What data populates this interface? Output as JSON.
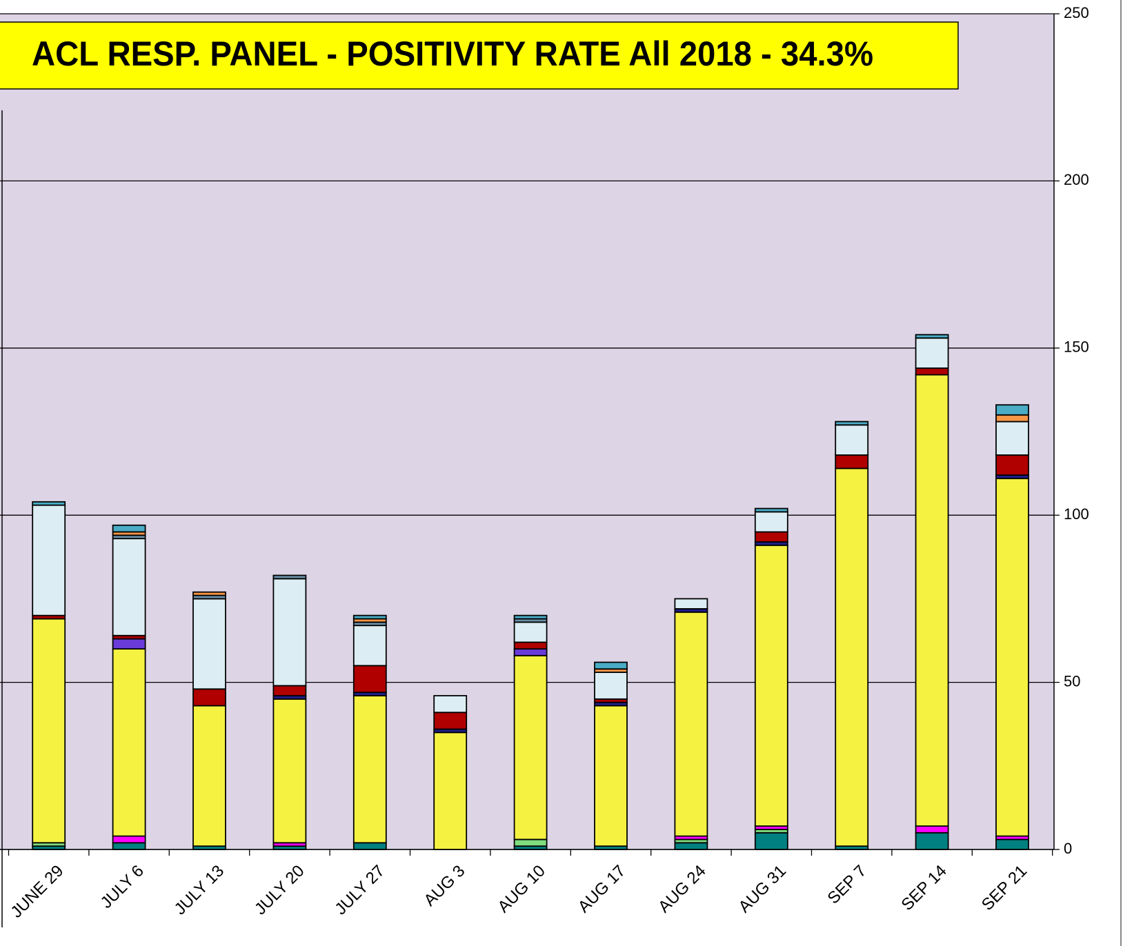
{
  "chart_data": {
    "type": "stacked_bar",
    "title": "ACL RESP. PANEL -  POSITIVITY RATE All 2018 - 34.3%",
    "categories": [
      "JUNE 29",
      "JULY 6",
      "JULY 13",
      "JULY 20",
      "JULY 27",
      "AUG 3",
      "AUG 10",
      "AUG 17",
      "AUG 24",
      "AUG 31",
      "SEP 7",
      "SEP 14",
      "SEP 21"
    ],
    "series": [
      {
        "color": "#008080",
        "values": [
          1,
          2,
          1,
          1,
          2,
          0,
          1,
          1,
          2,
          5,
          1,
          5,
          3
        ]
      },
      {
        "color": "#7fdc7f",
        "values": [
          1,
          0,
          0,
          0,
          0,
          0,
          2,
          0,
          1,
          1,
          0,
          0,
          0
        ]
      },
      {
        "color": "#ff00ff",
        "values": [
          0,
          2,
          0,
          1,
          0,
          0,
          0,
          0,
          1,
          1,
          0,
          2,
          1
        ]
      },
      {
        "color": "#f5f242",
        "values": [
          67,
          56,
          42,
          43,
          44,
          35,
          55,
          42,
          67,
          84,
          113,
          135,
          107
        ]
      },
      {
        "color": "#6a3bd8",
        "values": [
          0,
          3,
          0,
          0,
          0,
          0,
          2,
          0,
          0,
          0,
          0,
          0,
          0
        ]
      },
      {
        "color": "#1f1f8a",
        "values": [
          0,
          0,
          0,
          1,
          1,
          1,
          0,
          1,
          1,
          1,
          0,
          0,
          1
        ]
      },
      {
        "color": "#b00000",
        "values": [
          1,
          1,
          5,
          3,
          8,
          5,
          2,
          1,
          0,
          3,
          4,
          2,
          6
        ]
      },
      {
        "color": "#dceef4",
        "values": [
          33,
          29,
          27,
          32,
          12,
          5,
          6,
          8,
          3,
          6,
          9,
          9,
          10
        ]
      },
      {
        "color": "#6a8fa8",
        "values": [
          0,
          1,
          1,
          1,
          1,
          0,
          1,
          0,
          0,
          0,
          0,
          0,
          0
        ]
      },
      {
        "color": "#f79646",
        "values": [
          0,
          1,
          1,
          0,
          1,
          0,
          0,
          1,
          0,
          0,
          0,
          0,
          2
        ]
      },
      {
        "color": "#4bacc6",
        "values": [
          1,
          2,
          0,
          0,
          1,
          0,
          1,
          2,
          0,
          1,
          1,
          1,
          3
        ]
      }
    ],
    "ylim": [
      0,
      250
    ],
    "yticks": [
      0,
      50,
      100,
      150,
      200,
      250
    ],
    "grid": true
  }
}
